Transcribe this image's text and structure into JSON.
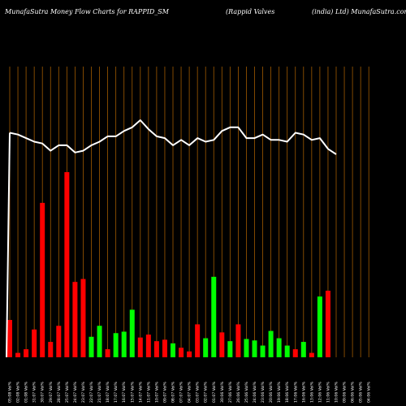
{
  "header": {
    "left": "MunafaSutra  Money Flow  Charts for RAPPID_SM",
    "middle": "(Rappid Valves",
    "right": "(india) Ltd) MunafaSutra.com"
  },
  "chart_data": {
    "type": "bar",
    "title": "MunafaSutra  Money Flow  Charts for RAPPID_SM (Rappid Valves (india) Ltd) MunafaSutra.com",
    "grid": true,
    "colors": {
      "positive": "#00ff00",
      "negative": "#ff0000",
      "price_line": "#ffffff",
      "grid": "#a05a00"
    },
    "categories": [
      "05:08 Vol%",
      "02:08 Vol%",
      "01:08 Vol%",
      "31:07 Vol%",
      "30:07 Vol%",
      "29:07 Vol%",
      "28:07 Vol%",
      "25:07 Vol%",
      "24:07 Vol%",
      "23:07 Vol%",
      "22:07 Vol%",
      "21:07 Vol%",
      "18:07 Vol%",
      "17:07 Vol%",
      "16:07 Vol%",
      "15:07 Vol%",
      "14:07 Vol%",
      "11:07 Vol%",
      "10:07 Vol%",
      "09:07 Vol%",
      "08:07 Vol%",
      "07:07 Vol%",
      "04:07 Vol%",
      "03:07 Vol%",
      "02:07 Vol%",
      "01:07 Vol%",
      "30:06 Vol%",
      "27:06 Vol%",
      "26:06 Vol%",
      "25:06 Vol%",
      "24:06 Vol%",
      "23:06 Vol%",
      "20:06 Vol%",
      "19:06 Vol%",
      "18:06 Vol%",
      "17:06 Vol%",
      "16:06 Vol%",
      "13:06 Vol%",
      "12:06 Vol%",
      "11:06 Vol%",
      "10:06 Vol%",
      "09:06 Vol%",
      "06:06 Vol%",
      "05:06 Vol%",
      "04:06 Vol%"
    ],
    "money_flow": [
      51,
      6,
      11,
      38,
      211,
      21,
      43,
      253,
      103,
      107,
      28,
      43,
      11,
      33,
      35,
      65,
      27,
      31,
      22,
      24,
      19,
      13,
      8,
      45,
      26,
      110,
      34,
      22,
      45,
      25,
      23,
      16,
      36,
      26,
      16,
      11,
      21,
      6,
      83,
      91,
      0,
      0,
      0,
      0,
      0
    ],
    "direction": [
      "neg",
      "neg",
      "neg",
      "neg",
      "neg",
      "neg",
      "neg",
      "neg",
      "neg",
      "neg",
      "pos",
      "pos",
      "neg",
      "pos",
      "pos",
      "pos",
      "neg",
      "neg",
      "neg",
      "neg",
      "pos",
      "neg",
      "neg",
      "neg",
      "pos",
      "pos",
      "neg",
      "pos",
      "neg",
      "pos",
      "pos",
      "pos",
      "pos",
      "pos",
      "pos",
      "neg",
      "pos",
      "neg",
      "pos",
      "neg",
      "pos",
      "pos",
      "pos",
      "pos",
      "pos"
    ],
    "price": [
      97,
      96,
      94,
      92,
      91,
      87,
      90,
      90,
      86,
      87,
      90,
      92,
      95,
      95,
      98,
      100,
      104,
      99,
      95,
      94,
      90,
      93,
      90,
      94,
      92,
      93,
      98,
      100,
      100,
      94,
      94,
      96,
      93,
      93,
      92,
      97,
      96,
      93,
      94,
      88,
      85,
      0,
      0,
      0,
      0
    ]
  }
}
